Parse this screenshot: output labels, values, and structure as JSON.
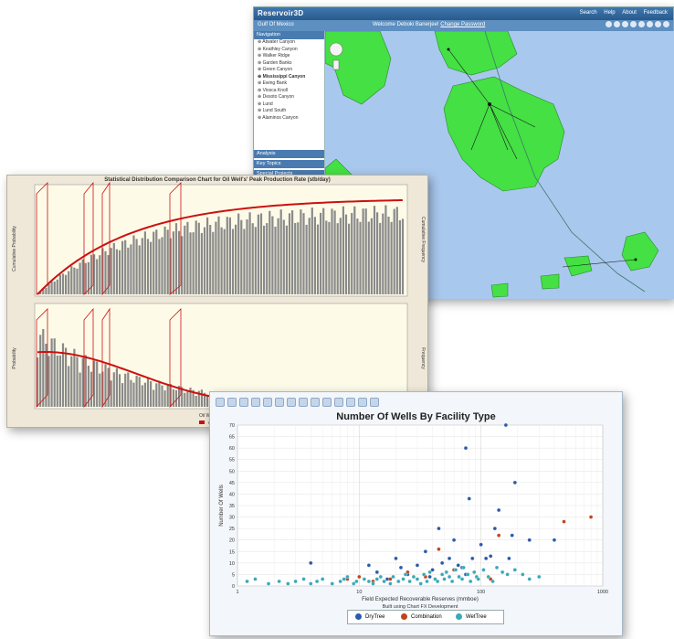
{
  "map_window": {
    "brand": "Reservoir3D",
    "top_menu": [
      "Search",
      "Help",
      "About",
      "Feedback"
    ],
    "left_label": "Gulf Of Mexico",
    "welcome": "Welcome Deboki Banerjee!",
    "change_password": "Change Password",
    "navigation_header": "Navigation",
    "nav_items": [
      "Atwater Canyon",
      "Keathley Canyon",
      "Walker Ridge",
      "Garden Banks",
      "Green Canyon",
      "Mississippi Canyon",
      "Ewing Bank",
      "Viosca Knoll",
      "Desoto Canyon",
      "Lund",
      "Lund South",
      "Alaminos Canyon"
    ],
    "sections": [
      "Analysis",
      "Key Topics",
      "Special Projects"
    ],
    "land_color": "#44e044",
    "water_color": "#a9c8ee"
  },
  "stat_window": {
    "title": "Statistical Distribution Comparison Chart for Oil Well's' Peak Production Rate (stb/day)",
    "upper_ylabel": "Cumulative Probability",
    "lower_ylabel": "Probability",
    "upper_right_label": "Cumulative Frequency",
    "lower_right_label": "Frequency",
    "xlabel": "Oil Well Pea",
    "legend_label": "Oil Well Pe",
    "curve_color": "#cc1111"
  },
  "chart_window": {
    "title": "Number Of Wells By Facility Type",
    "ylabel": "Number Of Wells",
    "xlabel": "Field Expected Recoverable Reserves (mmboe)",
    "caption": "Built using Chart FX Development",
    "legend": [
      {
        "label": "DryTree",
        "color": "#2a5aa8"
      },
      {
        "label": "Combination",
        "color": "#c0441a"
      },
      {
        "label": "WetTree",
        "color": "#3aa8b8"
      }
    ]
  },
  "chart_data": {
    "type": "scatter",
    "title": "Number Of Wells By Facility Type",
    "xlabel": "Field Expected Recoverable Reserves (mmboe)",
    "ylabel": "Number Of Wells",
    "x_scale": "log",
    "xlim": [
      1,
      1000
    ],
    "ylim": [
      0,
      70
    ],
    "x_ticks": [
      "1",
      "10",
      "100",
      "1000"
    ],
    "y_ticks": [
      0,
      5,
      10,
      15,
      20,
      25,
      30,
      35,
      40,
      45,
      50,
      55,
      60,
      65,
      70
    ],
    "grid": true,
    "legend_position": "bottom",
    "series": [
      {
        "name": "DryTree",
        "points": [
          [
            4,
            10
          ],
          [
            12,
            9
          ],
          [
            14,
            6
          ],
          [
            20,
            12
          ],
          [
            22,
            8
          ],
          [
            30,
            9
          ],
          [
            35,
            15
          ],
          [
            40,
            7
          ],
          [
            45,
            25
          ],
          [
            55,
            12
          ],
          [
            60,
            20
          ],
          [
            70,
            8
          ],
          [
            75,
            60
          ],
          [
            80,
            38
          ],
          [
            85,
            12
          ],
          [
            100,
            18
          ],
          [
            110,
            12
          ],
          [
            120,
            13
          ],
          [
            130,
            25
          ],
          [
            140,
            33
          ],
          [
            160,
            70
          ],
          [
            170,
            12
          ],
          [
            180,
            22
          ],
          [
            190,
            45
          ],
          [
            250,
            20
          ],
          [
            400,
            20
          ],
          [
            75,
            5
          ],
          [
            65,
            9
          ],
          [
            48,
            10
          ],
          [
            38,
            4
          ],
          [
            25,
            5
          ],
          [
            17,
            3
          ]
        ]
      },
      {
        "name": "Combination",
        "points": [
          [
            8,
            3
          ],
          [
            10,
            4
          ],
          [
            13,
            2
          ],
          [
            18,
            3
          ],
          [
            35,
            4
          ],
          [
            45,
            16
          ],
          [
            60,
            7
          ],
          [
            140,
            22
          ],
          [
            480,
            28
          ],
          [
            800,
            30
          ],
          [
            120,
            3
          ],
          [
            25,
            6
          ]
        ]
      },
      {
        "name": "WetTree",
        "points": [
          [
            1.2,
            2
          ],
          [
            1.4,
            3
          ],
          [
            1.8,
            1
          ],
          [
            2.2,
            2
          ],
          [
            2.6,
            1
          ],
          [
            3,
            2
          ],
          [
            3.5,
            3
          ],
          [
            4,
            1
          ],
          [
            4.5,
            2
          ],
          [
            5,
            3
          ],
          [
            6,
            1
          ],
          [
            7,
            2
          ],
          [
            7.5,
            3
          ],
          [
            8,
            4
          ],
          [
            9,
            1
          ],
          [
            9.5,
            2
          ],
          [
            11,
            3
          ],
          [
            12,
            2
          ],
          [
            13,
            1
          ],
          [
            14,
            3
          ],
          [
            15,
            4
          ],
          [
            16,
            2
          ],
          [
            18,
            1
          ],
          [
            19,
            4
          ],
          [
            21,
            2
          ],
          [
            23,
            3
          ],
          [
            24,
            5
          ],
          [
            26,
            2
          ],
          [
            28,
            4
          ],
          [
            30,
            3
          ],
          [
            32,
            1
          ],
          [
            34,
            5
          ],
          [
            36,
            2
          ],
          [
            38,
            6
          ],
          [
            42,
            3
          ],
          [
            44,
            2
          ],
          [
            48,
            5
          ],
          [
            50,
            3
          ],
          [
            52,
            6
          ],
          [
            55,
            4
          ],
          [
            58,
            2
          ],
          [
            62,
            7
          ],
          [
            66,
            4
          ],
          [
            70,
            3
          ],
          [
            72,
            8
          ],
          [
            78,
            5
          ],
          [
            82,
            2
          ],
          [
            88,
            6
          ],
          [
            92,
            4
          ],
          [
            95,
            3
          ],
          [
            105,
            7
          ],
          [
            115,
            4
          ],
          [
            125,
            2
          ],
          [
            135,
            8
          ],
          [
            150,
            6
          ],
          [
            165,
            5
          ],
          [
            190,
            7
          ],
          [
            220,
            5
          ],
          [
            250,
            3
          ],
          [
            300,
            4
          ]
        ]
      }
    ]
  }
}
